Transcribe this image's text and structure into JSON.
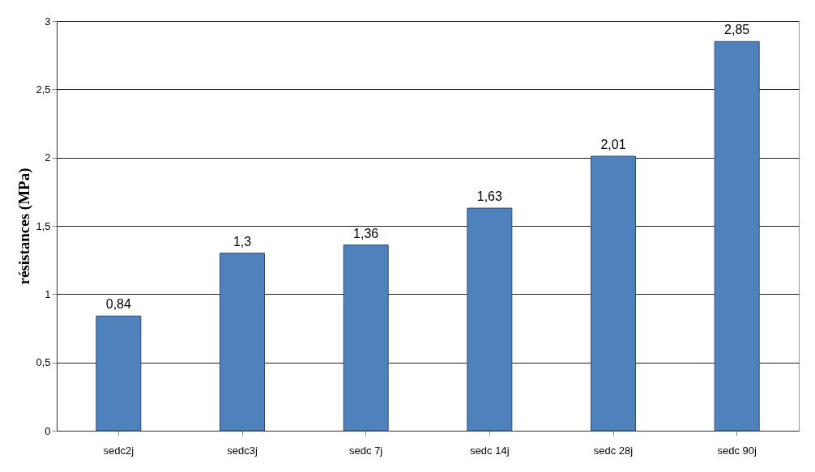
{
  "chart_data": {
    "type": "bar",
    "ylabel": "résistances (MPa)",
    "categories": [
      "sedc2j",
      "sedc3j",
      "sedc 7j",
      "sedc 14j",
      "sedc 28j",
      "sedc 90j"
    ],
    "values": [
      0.84,
      1.3,
      1.36,
      1.63,
      2.01,
      2.85
    ],
    "value_labels": [
      "0,84",
      "1,3",
      "1,36",
      "1,63",
      "2,01",
      "2,85"
    ],
    "color": "#4f81bd",
    "ylim": [
      0,
      3
    ],
    "yticks": [
      0,
      {
        "value": 0.5,
        "label": "0,5"
      },
      1,
      {
        "value": 1.5,
        "label": "1,5"
      },
      2,
      {
        "value": 2.5,
        "label": "2,5"
      },
      3
    ],
    "grid": "y"
  }
}
